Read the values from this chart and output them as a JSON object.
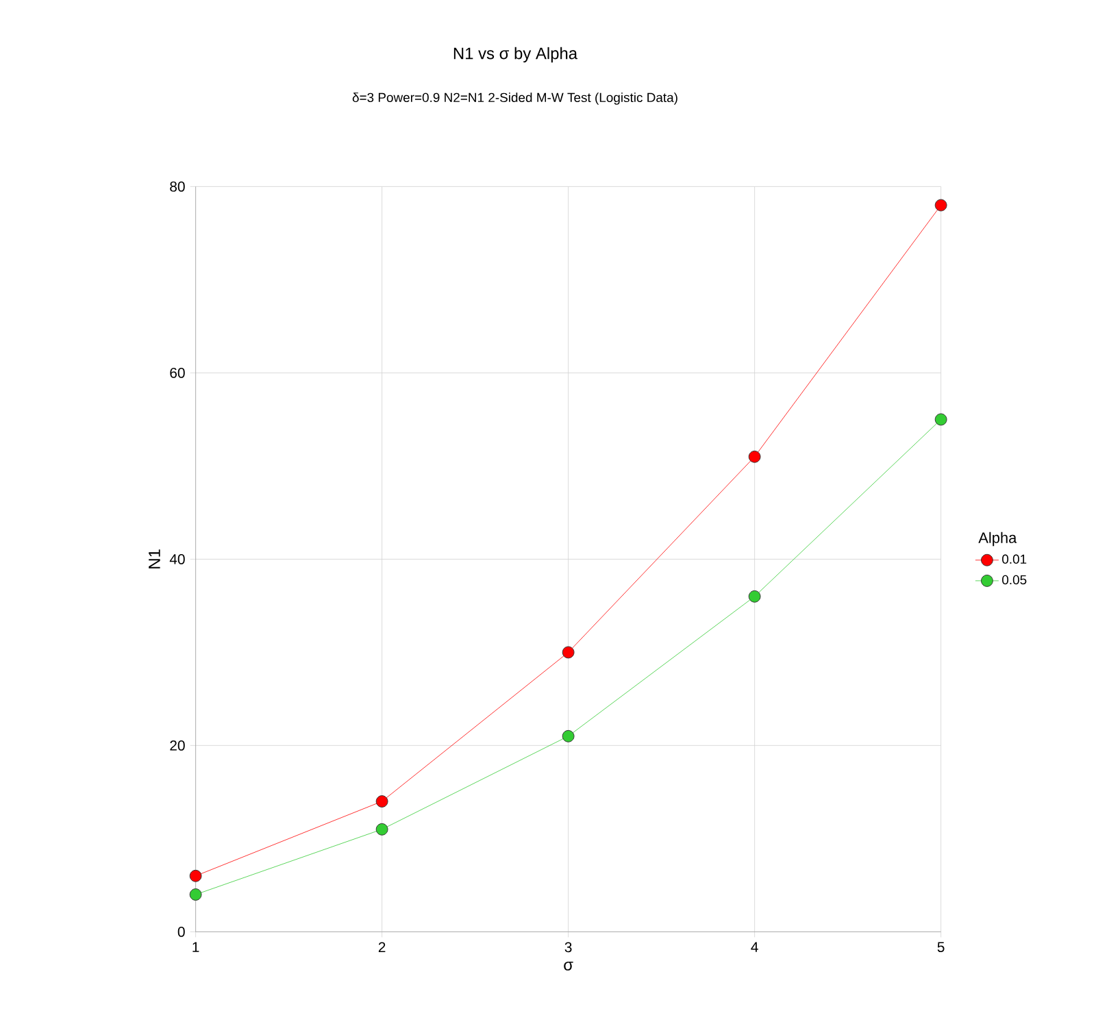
{
  "chart_data": {
    "type": "line",
    "title": "N1 vs σ by Alpha",
    "subtitle": "δ=3 Power=0.9 N2=N1 2-Sided M-W Test (Logistic Data)",
    "xlabel": "σ",
    "ylabel": "N1",
    "legend_title": "Alpha",
    "x": [
      1,
      2,
      3,
      4,
      5
    ],
    "series": [
      {
        "name": "0.01",
        "color": "#ff0000",
        "values": [
          6,
          14,
          30,
          51,
          78
        ]
      },
      {
        "name": "0.05",
        "color": "#33cc33",
        "values": [
          4,
          11,
          21,
          36,
          55
        ]
      }
    ],
    "xlim": [
      1,
      5
    ],
    "xticks": [
      1,
      2,
      3,
      4,
      5
    ],
    "ylim": [
      0,
      80
    ],
    "yticks": [
      0,
      20,
      40,
      60,
      80
    ],
    "grid": true,
    "legend": "right",
    "marker": "circle",
    "line_style": "solid"
  }
}
